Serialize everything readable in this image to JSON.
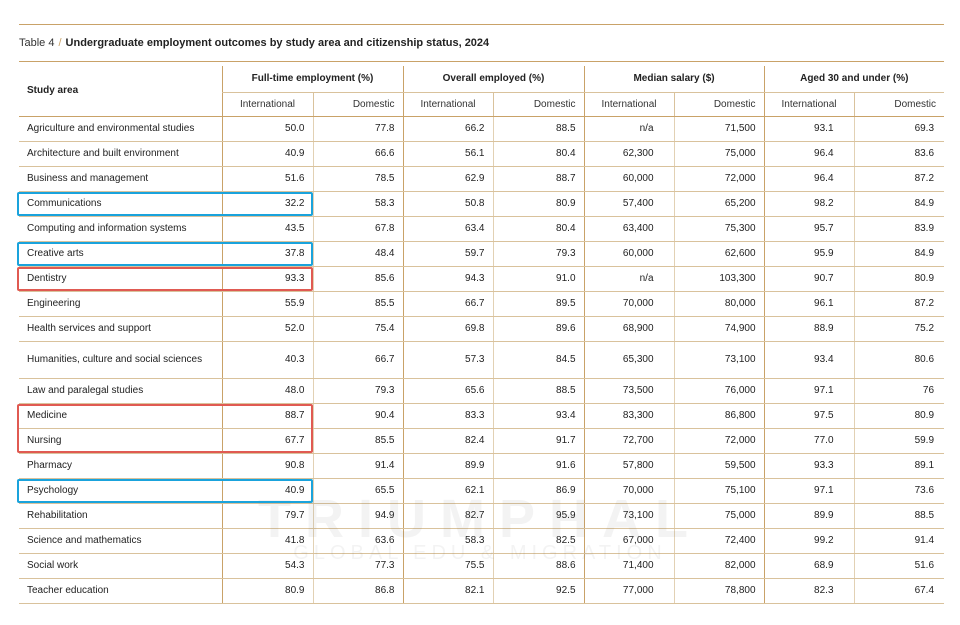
{
  "caption": {
    "table_number": "Table 4",
    "separator": "/",
    "title": "Undergraduate employment outcomes by study area and citizenship status, 2024"
  },
  "header": {
    "study_area": "Study area",
    "groups": [
      "Full-time employment (%)",
      "Overall employed (%)",
      "Median salary ($)",
      "Aged 30 and under (%)"
    ],
    "international": "International",
    "domestic": "Domestic"
  },
  "rows": [
    {
      "name": "Agriculture and environmental studies",
      "ft_int": "50.0",
      "ft_dom": "77.8",
      "oe_int": "66.2",
      "oe_dom": "88.5",
      "sal_int": "n/a",
      "sal_dom": "71,500",
      "age_int": "93.1",
      "age_dom": "69.3"
    },
    {
      "name": "Architecture and built environment",
      "ft_int": "40.9",
      "ft_dom": "66.6",
      "oe_int": "56.1",
      "oe_dom": "80.4",
      "sal_int": "62,300",
      "sal_dom": "75,000",
      "age_int": "96.4",
      "age_dom": "83.6"
    },
    {
      "name": "Business and management",
      "ft_int": "51.6",
      "ft_dom": "78.5",
      "oe_int": "62.9",
      "oe_dom": "88.7",
      "sal_int": "60,000",
      "sal_dom": "72,000",
      "age_int": "96.4",
      "age_dom": "87.2"
    },
    {
      "name": "Communications",
      "ft_int": "32.2",
      "ft_dom": "58.3",
      "oe_int": "50.8",
      "oe_dom": "80.9",
      "sal_int": "57,400",
      "sal_dom": "65,200",
      "age_int": "98.2",
      "age_dom": "84.9"
    },
    {
      "name": "Computing and information systems",
      "ft_int": "43.5",
      "ft_dom": "67.8",
      "oe_int": "63.4",
      "oe_dom": "80.4",
      "sal_int": "63,400",
      "sal_dom": "75,300",
      "age_int": "95.7",
      "age_dom": "83.9"
    },
    {
      "name": "Creative arts",
      "ft_int": "37.8",
      "ft_dom": "48.4",
      "oe_int": "59.7",
      "oe_dom": "79.3",
      "sal_int": "60,000",
      "sal_dom": "62,600",
      "age_int": "95.9",
      "age_dom": "84.9"
    },
    {
      "name": "Dentistry",
      "ft_int": "93.3",
      "ft_dom": "85.6",
      "oe_int": "94.3",
      "oe_dom": "91.0",
      "sal_int": "n/a",
      "sal_dom": "103,300",
      "age_int": "90.7",
      "age_dom": "80.9"
    },
    {
      "name": "Engineering",
      "ft_int": "55.9",
      "ft_dom": "85.5",
      "oe_int": "66.7",
      "oe_dom": "89.5",
      "sal_int": "70,000",
      "sal_dom": "80,000",
      "age_int": "96.1",
      "age_dom": "87.2"
    },
    {
      "name": "Health services and support",
      "ft_int": "52.0",
      "ft_dom": "75.4",
      "oe_int": "69.8",
      "oe_dom": "89.6",
      "sal_int": "68,900",
      "sal_dom": "74,900",
      "age_int": "88.9",
      "age_dom": "75.2"
    },
    {
      "name": "Humanities, culture and social sciences",
      "ft_int": "40.3",
      "ft_dom": "66.7",
      "oe_int": "57.3",
      "oe_dom": "84.5",
      "sal_int": "65,300",
      "sal_dom": "73,100",
      "age_int": "93.4",
      "age_dom": "80.6"
    },
    {
      "name": "Law and paralegal studies",
      "ft_int": "48.0",
      "ft_dom": "79.3",
      "oe_int": "65.6",
      "oe_dom": "88.5",
      "sal_int": "73,500",
      "sal_dom": "76,000",
      "age_int": "97.1",
      "age_dom": "76"
    },
    {
      "name": "Medicine",
      "ft_int": "88.7",
      "ft_dom": "90.4",
      "oe_int": "83.3",
      "oe_dom": "93.4",
      "sal_int": "83,300",
      "sal_dom": "86,800",
      "age_int": "97.5",
      "age_dom": "80.9"
    },
    {
      "name": "Nursing",
      "ft_int": "67.7",
      "ft_dom": "85.5",
      "oe_int": "82.4",
      "oe_dom": "91.7",
      "sal_int": "72,700",
      "sal_dom": "72,000",
      "age_int": "77.0",
      "age_dom": "59.9"
    },
    {
      "name": "Pharmacy",
      "ft_int": "90.8",
      "ft_dom": "91.4",
      "oe_int": "89.9",
      "oe_dom": "91.6",
      "sal_int": "57,800",
      "sal_dom": "59,500",
      "age_int": "93.3",
      "age_dom": "89.1"
    },
    {
      "name": "Psychology",
      "ft_int": "40.9",
      "ft_dom": "65.5",
      "oe_int": "62.1",
      "oe_dom": "86.9",
      "sal_int": "70,000",
      "sal_dom": "75,100",
      "age_int": "97.1",
      "age_dom": "73.6"
    },
    {
      "name": "Rehabilitation",
      "ft_int": "79.7",
      "ft_dom": "94.9",
      "oe_int": "82.7",
      "oe_dom": "95.9",
      "sal_int": "73,100",
      "sal_dom": "75,000",
      "age_int": "89.9",
      "age_dom": "88.5"
    },
    {
      "name": "Science and mathematics",
      "ft_int": "41.8",
      "ft_dom": "63.6",
      "oe_int": "58.3",
      "oe_dom": "82.5",
      "sal_int": "67,000",
      "sal_dom": "72,400",
      "age_int": "99.2",
      "age_dom": "91.4"
    },
    {
      "name": "Social work",
      "ft_int": "54.3",
      "ft_dom": "77.3",
      "oe_int": "75.5",
      "oe_dom": "88.6",
      "sal_int": "71,400",
      "sal_dom": "82,000",
      "age_int": "68.9",
      "age_dom": "51.6"
    },
    {
      "name": "Teacher education",
      "ft_int": "80.9",
      "ft_dom": "86.8",
      "oe_int": "82.1",
      "oe_dom": "92.5",
      "sal_int": "77,000",
      "sal_dom": "78,800",
      "age_int": "82.3",
      "age_dom": "67.4"
    }
  ],
  "highlights": {
    "blue": [
      "Communications",
      "Creative arts",
      "Psychology"
    ],
    "red": [
      "Dentistry",
      "Medicine",
      "Nursing"
    ],
    "colors": {
      "blue": "#1aa3dc",
      "red": "#e05a52"
    }
  },
  "watermark": {
    "line1": "TRIUMPHAL",
    "line2": "GLOBAL EDU & MIGRATION"
  }
}
